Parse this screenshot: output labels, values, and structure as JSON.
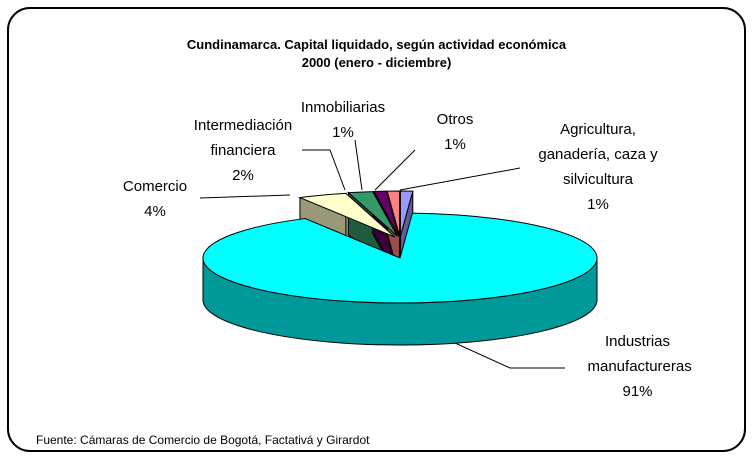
{
  "chart_data": {
    "type": "pie",
    "title": "Cundinamarca.  Capital liquidado, según actividad económica",
    "subtitle": "2000 (enero - diciembre)",
    "categories": [
      "Agricultura, ganadería, caza y silvicultura",
      "Industrias manufactureras",
      "Comercio",
      "Intermediación financiera",
      "Inmobiliarias",
      "Otros"
    ],
    "values": [
      1,
      91,
      4,
      2,
      1,
      1
    ],
    "value_labels": [
      "1%",
      "91%",
      "4%",
      "2%",
      "1%",
      "1%"
    ],
    "colors": [
      "#9999ff",
      "#00ffff",
      "#ffffcc",
      "#339966",
      "#660066",
      "#ff8080"
    ],
    "source": "Fuente: Cámaras de Comercio de Bogotá, Factativá y Girardot"
  }
}
